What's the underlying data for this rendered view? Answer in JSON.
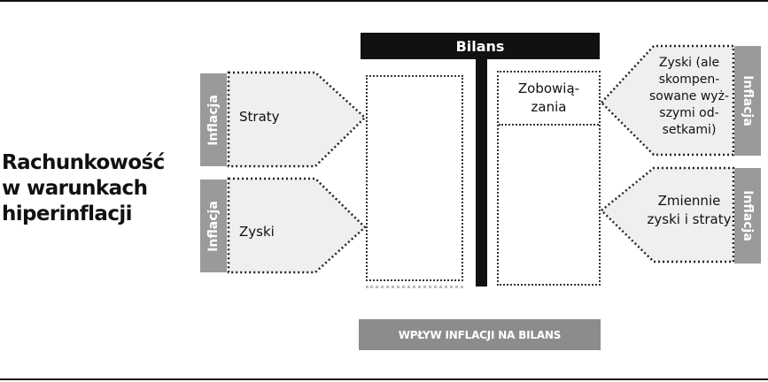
{
  "title": "Rachunkowość w warunkach hiperinflacji",
  "bilans": {
    "header": "Bilans",
    "liability_label": "Zobowią-\nzania"
  },
  "left": {
    "items": [
      {
        "tab": "Inflacja",
        "label": "Straty"
      },
      {
        "tab": "Inflacja",
        "label": "Zyski"
      }
    ]
  },
  "right": {
    "items": [
      {
        "tab": "Inflacja",
        "label": "Zyski (ale skompen-sowane wyż-szymi od-setkami)"
      },
      {
        "tab": "Inflacja",
        "label": "Zmiennie zyski i straty"
      }
    ]
  },
  "footer": "WPŁYW INFLACJI NA BILANS",
  "colors": {
    "dark": "#111111",
    "tab_gray": "#9a9a9a",
    "arrow_fill": "#efefef",
    "footer_gray": "#8c8c8c"
  }
}
